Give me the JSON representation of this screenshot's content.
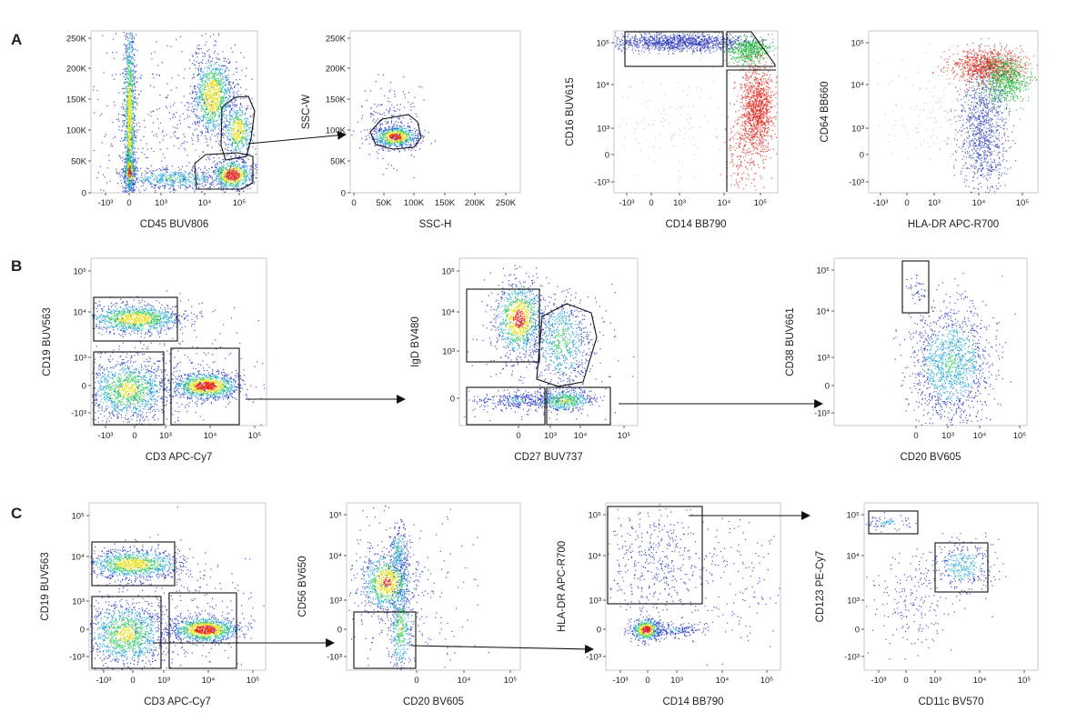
{
  "figure": {
    "panels": [
      {
        "letter": "A"
      },
      {
        "letter": "B"
      },
      {
        "letter": "C"
      }
    ],
    "plots": [
      {
        "id": "a1",
        "x_label": "CD45 BUV806",
        "y_label": "",
        "x_ticks": [
          "-10³",
          "0",
          "10³",
          "10⁴",
          "10⁵"
        ],
        "y_ticks": [
          "250K",
          "200K",
          "150K",
          "100K",
          "50K",
          "0"
        ]
      },
      {
        "id": "a2",
        "x_label": "SSC-H",
        "y_label": "SSC-W",
        "x_ticks": [
          "0",
          "50K",
          "100K",
          "150K",
          "200K",
          "250K"
        ],
        "y_ticks": [
          "250K",
          "200K",
          "150K",
          "100K",
          "50K",
          "0"
        ]
      },
      {
        "id": "a3",
        "x_label": "CD14 BB790",
        "y_label": "CD16 BUV615",
        "x_ticks": [
          "-10³",
          "0",
          "10³",
          "10⁴",
          "10⁵"
        ],
        "y_ticks": [
          "10⁵",
          "10⁴",
          "10³",
          "0",
          "-10³"
        ]
      },
      {
        "id": "a4",
        "x_label": "HLA-DR APC-R700",
        "y_label": "CD64 BB660",
        "x_ticks": [
          "-10³",
          "0",
          "10³",
          "10⁴",
          "10⁵"
        ],
        "y_ticks": [
          "10⁵",
          "10⁴",
          "10³",
          "0",
          "-10³"
        ]
      },
      {
        "id": "b1",
        "x_label": "CD3 APC-Cy7",
        "y_label": "CD19 BUV563",
        "x_ticks": [
          "-10³",
          "0",
          "10³",
          "10⁴",
          "10⁵"
        ],
        "y_ticks": [
          "10⁵",
          "10⁴",
          "10³",
          "0",
          "-10³"
        ]
      },
      {
        "id": "b2",
        "x_label": "CD27 BUV737",
        "y_label": "IgD BV480",
        "x_ticks": [
          "0",
          "10³",
          "10⁴",
          "10⁵"
        ],
        "y_ticks": [
          "10⁵",
          "10⁴",
          "10³",
          "0"
        ]
      },
      {
        "id": "b3",
        "x_label": "CD20 BV605",
        "y_label": "CD38 BUV661",
        "x_ticks": [
          "0",
          "10³",
          "10⁴",
          "10⁵"
        ],
        "y_ticks": [
          "10⁵",
          "10⁴",
          "10³",
          "0",
          "-10³"
        ]
      },
      {
        "id": "c1",
        "x_label": "CD3 APC-Cy7",
        "y_label": "CD19 BUV563",
        "x_ticks": [
          "-10³",
          "0",
          "10³",
          "10⁴",
          "10⁵"
        ],
        "y_ticks": [
          "10⁵",
          "10⁴",
          "10³",
          "0",
          "-10³"
        ]
      },
      {
        "id": "c2",
        "x_label": "CD20 BV605",
        "y_label": "CD56 BV650",
        "x_ticks": [
          "0",
          "10⁴",
          "10⁵"
        ],
        "y_ticks": [
          "10⁵",
          "10⁴",
          "10³",
          "0",
          "-10³"
        ]
      },
      {
        "id": "c3",
        "x_label": "CD14 BB790",
        "y_label": "HLA-DR APC-R700",
        "x_ticks": [
          "-10³",
          "0",
          "10³",
          "10⁴",
          "10⁵"
        ],
        "y_ticks": [
          "10⁵",
          "10⁴",
          "10³",
          "0",
          "-10³"
        ]
      },
      {
        "id": "c4",
        "x_label": "CD11c BV570",
        "y_label": "CD123 PE-Cy7",
        "x_ticks": [
          "-10³",
          "0",
          "10³",
          "10⁴",
          "10⁵"
        ],
        "y_ticks": [
          "10⁵",
          "10⁴",
          "10³",
          "0",
          "-10³"
        ]
      }
    ]
  },
  "colors": {
    "density_low": "#2a3cc8",
    "density_mid": "#2aa8d8",
    "density_mid2": "#3fcf6a",
    "density_high": "#e8e020",
    "density_peak": "#e8281c",
    "green_population": "#1fb83a",
    "red_population": "#e02418",
    "blue_population": "#2838b8",
    "frame": "#bdbdbd",
    "gate": "#111111"
  }
}
